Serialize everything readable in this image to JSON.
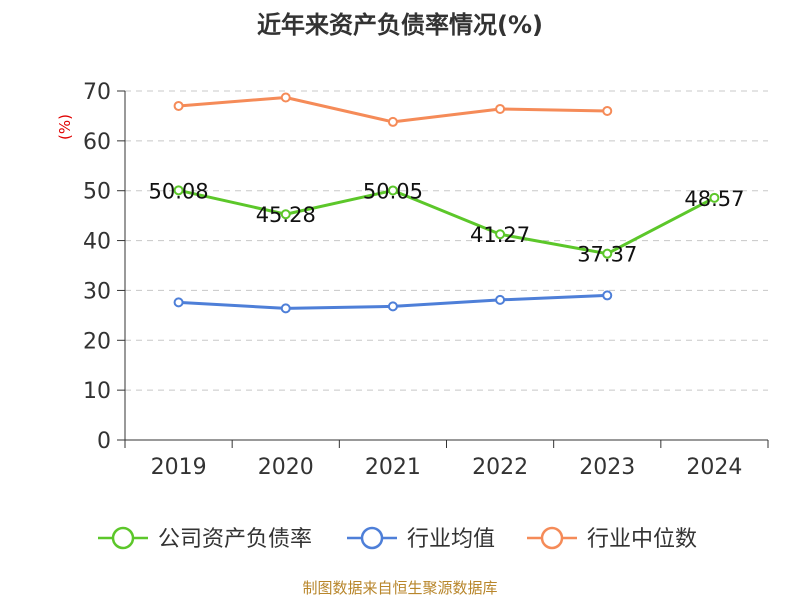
{
  "chart_data": {
    "type": "line",
    "title": "近年来资产负债率情况(%)",
    "ylabel": "(%)",
    "xlabel": "",
    "categories": [
      "2019",
      "2020",
      "2021",
      "2022",
      "2023",
      "2024"
    ],
    "ylim": [
      0,
      70
    ],
    "yticks": [
      0,
      10,
      20,
      30,
      40,
      50,
      60,
      70
    ],
    "grid": true,
    "legend_position": "bottom",
    "series": [
      {
        "name": "公司资产负债率",
        "color": "#5cc72a",
        "values": [
          50.08,
          45.28,
          50.05,
          41.27,
          37.37,
          48.57
        ],
        "labels": [
          "50.08",
          "45.28",
          "50.05",
          "41.27",
          "37.37",
          "48.57"
        ]
      },
      {
        "name": "行业均值",
        "color": "#4e7fd8",
        "values": [
          27.6,
          26.4,
          26.8,
          28.1,
          29.0,
          null
        ]
      },
      {
        "name": "行业中位数",
        "color": "#f58b58",
        "values": [
          67.0,
          68.7,
          63.8,
          66.4,
          66.0,
          null
        ]
      }
    ]
  },
  "source": "制图数据来自恒生聚源数据库"
}
